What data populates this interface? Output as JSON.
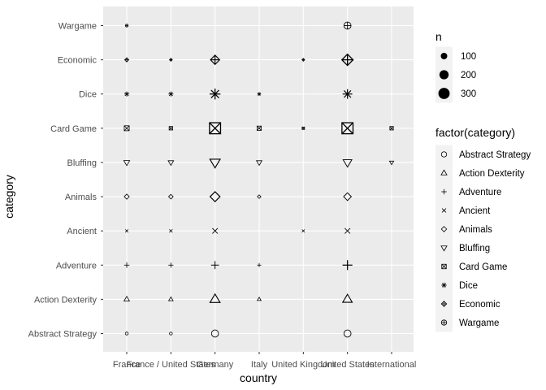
{
  "chart_data": {
    "type": "scatter",
    "xlabel": "country",
    "ylabel": "category",
    "x_categories": [
      "France",
      "France / United States",
      "Germany",
      "Italy",
      "United Kingdom",
      "United States",
      "International"
    ],
    "y_categories": [
      "Abstract Strategy",
      "Action  Dexterity",
      "Adventure",
      "Ancient",
      "Animals",
      "Bluffing",
      "Card Game",
      "Dice",
      "Economic",
      "Wargame"
    ],
    "points": [
      {
        "x": "France",
        "y": "Abstract Strategy",
        "n": 20
      },
      {
        "x": "France",
        "y": "Action  Dexterity",
        "n": 60
      },
      {
        "x": "France",
        "y": "Adventure",
        "n": 70
      },
      {
        "x": "France",
        "y": "Ancient",
        "n": 35
      },
      {
        "x": "France",
        "y": "Animals",
        "n": 60
      },
      {
        "x": "France",
        "y": "Bluffing",
        "n": 70
      },
      {
        "x": "France",
        "y": "Card Game",
        "n": 80
      },
      {
        "x": "France",
        "y": "Dice",
        "n": 60
      },
      {
        "x": "France",
        "y": "Economic",
        "n": 40
      },
      {
        "x": "France",
        "y": "Wargame",
        "n": 8
      },
      {
        "x": "France / United States",
        "y": "Abstract Strategy",
        "n": 15
      },
      {
        "x": "France / United States",
        "y": "Action  Dexterity",
        "n": 40
      },
      {
        "x": "France / United States",
        "y": "Adventure",
        "n": 60
      },
      {
        "x": "France / United States",
        "y": "Ancient",
        "n": 40
      },
      {
        "x": "France / United States",
        "y": "Animals",
        "n": 50
      },
      {
        "x": "France / United States",
        "y": "Bluffing",
        "n": 60
      },
      {
        "x": "France / United States",
        "y": "Card Game",
        "n": 40
      },
      {
        "x": "France / United States",
        "y": "Dice",
        "n": 60
      },
      {
        "x": "France / United States",
        "y": "Economic",
        "n": 20
      },
      {
        "x": "Germany",
        "y": "Abstract Strategy",
        "n": 120
      },
      {
        "x": "Germany",
        "y": "Action  Dexterity",
        "n": 200
      },
      {
        "x": "Germany",
        "y": "Adventure",
        "n": 150
      },
      {
        "x": "Germany",
        "y": "Ancient",
        "n": 120
      },
      {
        "x": "Germany",
        "y": "Animals",
        "n": 230
      },
      {
        "x": "Germany",
        "y": "Bluffing",
        "n": 210
      },
      {
        "x": "Germany",
        "y": "Card Game",
        "n": 400
      },
      {
        "x": "Germany",
        "y": "Dice",
        "n": 280
      },
      {
        "x": "Germany",
        "y": "Economic",
        "n": 200
      },
      {
        "x": "Italy",
        "y": "Action  Dexterity",
        "n": 30
      },
      {
        "x": "Italy",
        "y": "Adventure",
        "n": 40
      },
      {
        "x": "Italy",
        "y": "Animals",
        "n": 30
      },
      {
        "x": "Italy",
        "y": "Bluffing",
        "n": 60
      },
      {
        "x": "Italy",
        "y": "Card Game",
        "n": 60
      },
      {
        "x": "Italy",
        "y": "Dice",
        "n": 35
      },
      {
        "x": "United Kingdom",
        "y": "Ancient",
        "n": 30
      },
      {
        "x": "United Kingdom",
        "y": "Card Game",
        "n": 15
      },
      {
        "x": "United Kingdom",
        "y": "Economic",
        "n": 15
      },
      {
        "x": "United States",
        "y": "Abstract Strategy",
        "n": 120
      },
      {
        "x": "United States",
        "y": "Action  Dexterity",
        "n": 180
      },
      {
        "x": "United States",
        "y": "Adventure",
        "n": 230
      },
      {
        "x": "United States",
        "y": "Ancient",
        "n": 120
      },
      {
        "x": "United States",
        "y": "Animals",
        "n": 140
      },
      {
        "x": "United States",
        "y": "Bluffing",
        "n": 150
      },
      {
        "x": "United States",
        "y": "Card Game",
        "n": 400
      },
      {
        "x": "United States",
        "y": "Dice",
        "n": 220
      },
      {
        "x": "United States",
        "y": "Economic",
        "n": 300
      },
      {
        "x": "United States",
        "y": "Wargame",
        "n": 120
      },
      {
        "x": "International",
        "y": "Bluffing",
        "n": 35
      },
      {
        "x": "International",
        "y": "Card Game",
        "n": 40
      }
    ],
    "size_legend": {
      "title": "n",
      "values": [
        100,
        200,
        300
      ],
      "labels": [
        "100",
        "200",
        "300"
      ]
    },
    "shape_legend": {
      "title": "factor(category)",
      "entries": [
        {
          "label": "Abstract Strategy",
          "shape": "circle"
        },
        {
          "label": "Action  Dexterity",
          "shape": "triangle-up"
        },
        {
          "label": "Adventure",
          "shape": "plus"
        },
        {
          "label": "Ancient",
          "shape": "cross"
        },
        {
          "label": "Animals",
          "shape": "diamond"
        },
        {
          "label": "Bluffing",
          "shape": "triangle-down"
        },
        {
          "label": "Card Game",
          "shape": "square-cross"
        },
        {
          "label": "Dice",
          "shape": "asterisk"
        },
        {
          "label": "Economic",
          "shape": "diamond-plus"
        },
        {
          "label": "Wargame",
          "shape": "circle-plus"
        }
      ]
    },
    "colors": {
      "panel_background": "#ebebeb",
      "grid_major": "#ffffff",
      "marker": "#000000"
    },
    "grid": true,
    "legend_position": "right"
  }
}
